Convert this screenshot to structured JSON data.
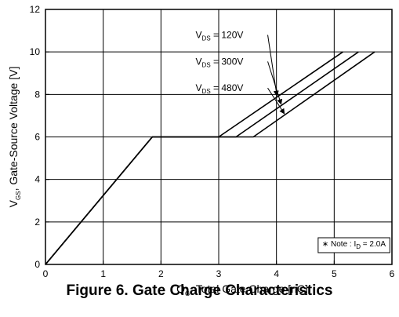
{
  "chart_data": {
    "type": "line",
    "xlim": [
      0,
      6
    ],
    "ylim": [
      0,
      12
    ],
    "xticks": [
      "0",
      "1",
      "2",
      "3",
      "4",
      "5",
      "6"
    ],
    "yticks": [
      "0",
      "2",
      "4",
      "6",
      "8",
      "10",
      "12"
    ],
    "grid": true,
    "ylabel": {
      "pre": "V",
      "sub": "GS",
      "post": ", Gate-Source Voltage [V]"
    },
    "xlabel": {
      "pre": "Q",
      "sub": "G",
      "post": ", Total Gate Charge [nC]"
    },
    "series": [
      {
        "name": "120V",
        "x": [
          0,
          1.85,
          3.0,
          5.15
        ],
        "y": [
          0,
          6,
          6,
          10
        ]
      },
      {
        "name": "300V",
        "x": [
          0,
          1.85,
          3.3,
          5.42
        ],
        "y": [
          0,
          6,
          6,
          10
        ]
      },
      {
        "name": "480V",
        "x": [
          0,
          1.85,
          3.6,
          5.7
        ],
        "y": [
          0,
          6,
          6,
          10
        ]
      }
    ],
    "annotations": [
      {
        "pre": "V",
        "sub": "DS",
        "post": " = 120V"
      },
      {
        "pre": "V",
        "sub": "DS",
        "post": " = 300V"
      },
      {
        "pre": "V",
        "sub": "DS",
        "post": " = 480V"
      }
    ],
    "note": {
      "pre": "∗ Note : I",
      "sub": "D",
      "post": " = 2.0A"
    }
  },
  "caption": "Figure 6. Gate Charge Characteristics"
}
